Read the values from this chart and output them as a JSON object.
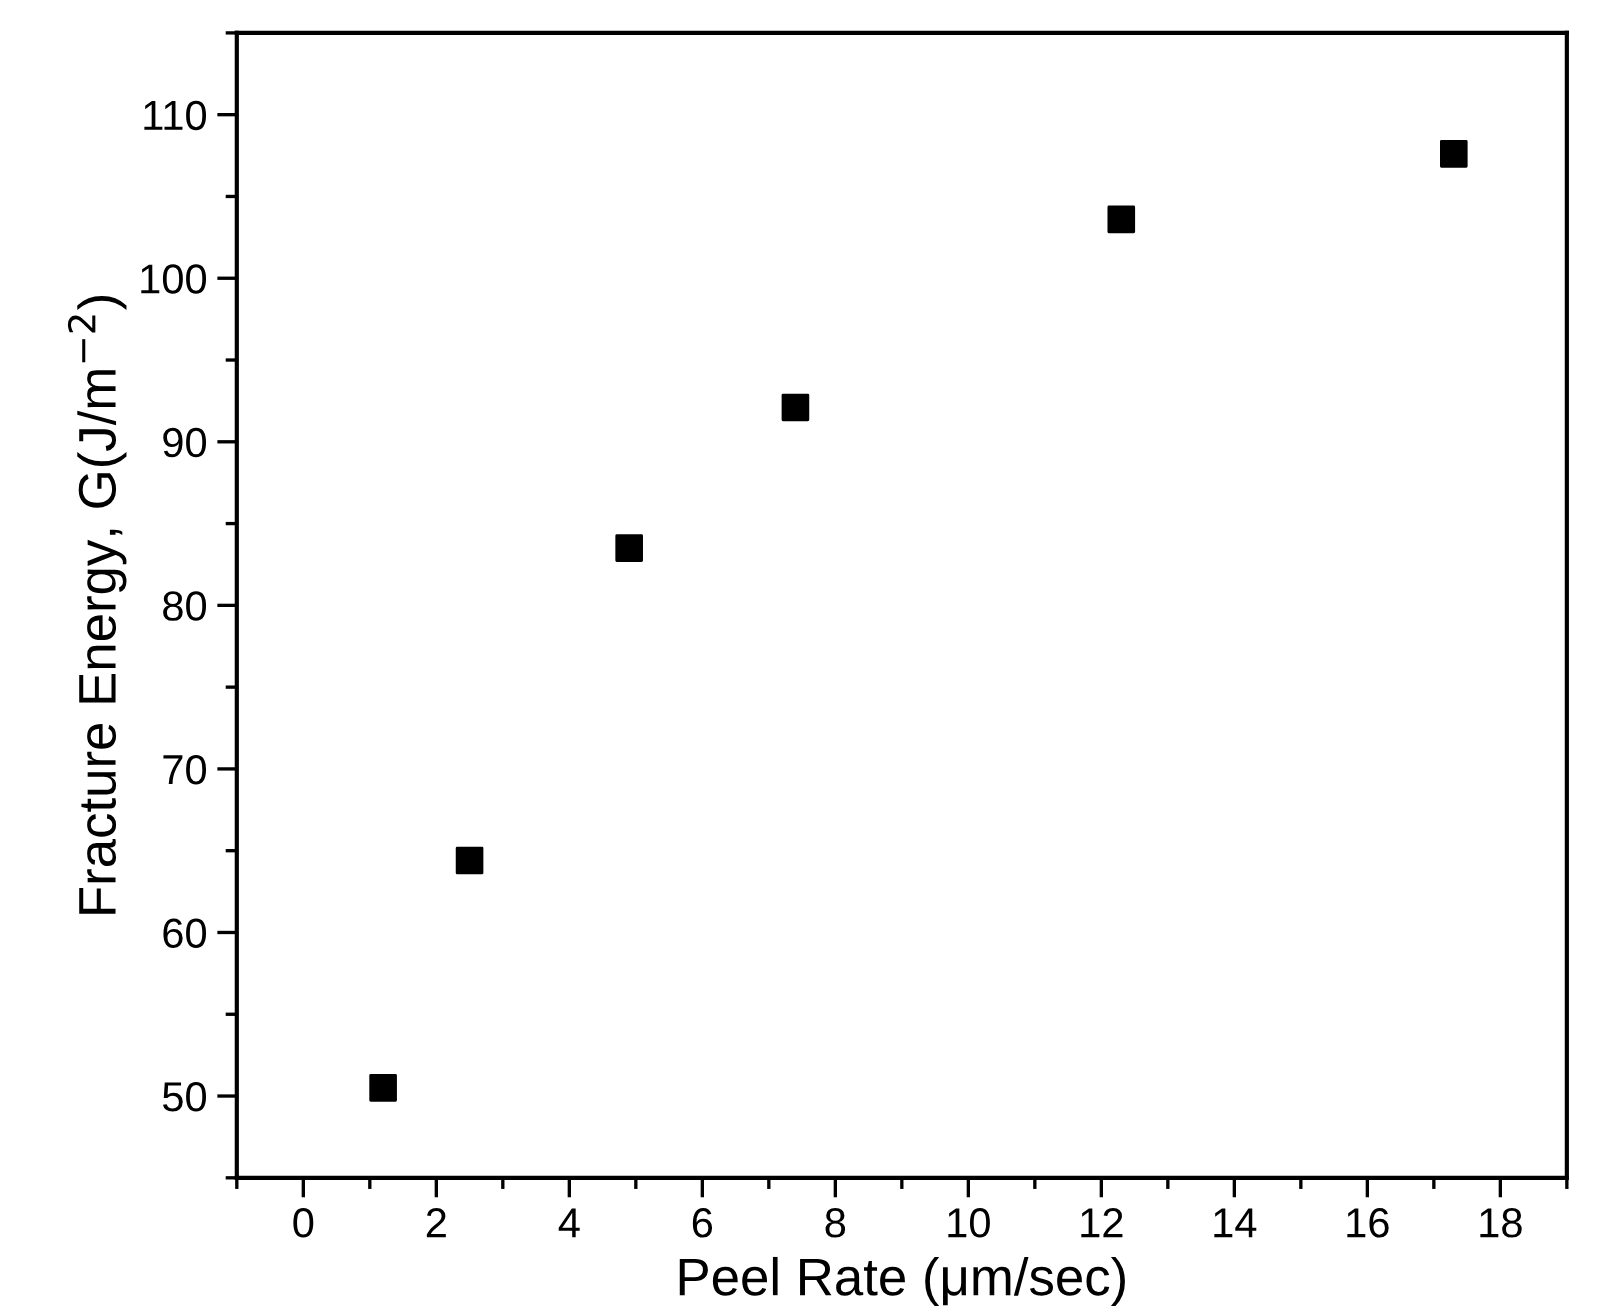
{
  "chart_data": {
    "type": "scatter",
    "xlabel": "Peel Rate (μm/sec)",
    "ylabel": "Fracture Energy, G(J/m$^{−2}$)",
    "x": [
      1.2,
      2.5,
      4.9,
      7.4,
      12.3,
      17.3
    ],
    "series": [
      {
        "color": "#000000",
        "values": [
          50.5,
          64.4,
          83.5,
          92.1,
          103.6,
          107.6
        ]
      }
    ],
    "marker": "square",
    "xlim": [
      -1,
      19
    ],
    "ylim": [
      45,
      115
    ],
    "xticks": [
      0,
      2,
      4,
      6,
      8,
      10,
      12,
      14,
      16,
      18
    ],
    "yticks": [
      50,
      60,
      70,
      80,
      90,
      100,
      110
    ],
    "grid": false,
    "legend": false
  }
}
